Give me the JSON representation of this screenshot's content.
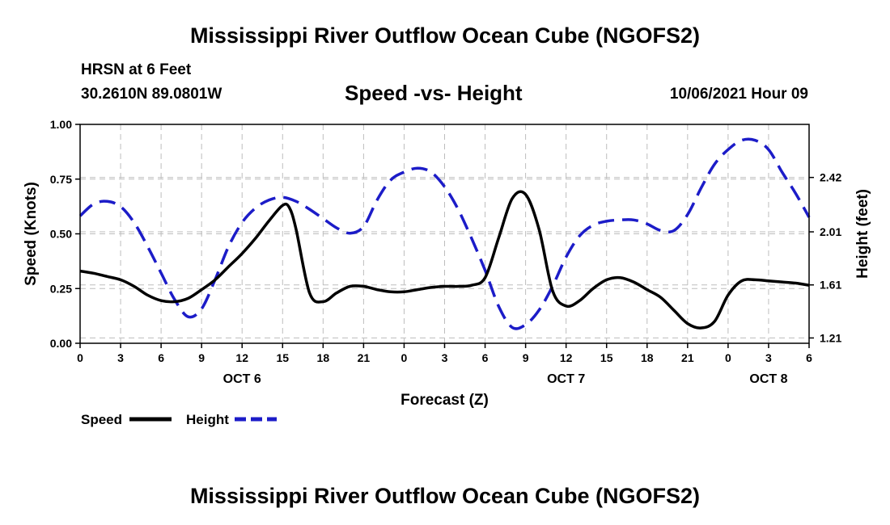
{
  "header": {
    "title_top": "Mississippi River Outflow Ocean Cube (NGOFS2)",
    "station": "HRSN at 6 Feet",
    "coords": "30.2610N  89.0801W",
    "datetime": "10/06/2021 Hour 09",
    "title_bottom": "Mississippi River Outflow Ocean Cube (NGOFS2)"
  },
  "chart_data": {
    "type": "line",
    "title": "Speed -vs- Height",
    "xlabel": "Forecast (Z)",
    "ylabel": "Speed (Knots)",
    "ylabel_right": "Height (feet)",
    "x_ticks": [
      "0",
      "3",
      "6",
      "9",
      "12",
      "15",
      "18",
      "21",
      "0",
      "3",
      "6",
      "9",
      "12",
      "15",
      "18",
      "21",
      "0",
      "3",
      "6"
    ],
    "x_range": [
      0,
      54
    ],
    "date_labels": [
      {
        "label": "OCT 6",
        "x": 12
      },
      {
        "label": "OCT 7",
        "x": 36
      },
      {
        "label": "OCT 8",
        "x": 51
      }
    ],
    "ylim": [
      0,
      1
    ],
    "y_ticks": [
      "0.00",
      "0.25",
      "0.50",
      "0.75",
      "1.00"
    ],
    "y_tick_values": [
      0,
      0.25,
      0.5,
      0.75,
      1.0
    ],
    "ylim_right": [
      1.17,
      2.82
    ],
    "y_ticks_right": [
      "1.21",
      "1.61",
      "2.01",
      "2.42"
    ],
    "y_tick_values_right": [
      1.21,
      1.61,
      2.01,
      2.42
    ],
    "grid": true,
    "series": [
      {
        "name": "Speed",
        "axis": "left",
        "color": "#000000",
        "dash": "solid",
        "x": [
          0,
          1,
          2,
          3,
          4,
          5,
          6,
          7,
          8,
          9,
          10,
          11,
          12,
          13,
          14,
          15,
          15.5,
          16,
          17,
          18,
          19,
          20,
          21,
          22,
          23,
          24,
          25,
          26,
          27,
          28,
          29,
          30,
          31,
          32,
          33,
          34,
          35,
          36,
          37,
          38,
          39,
          40,
          41,
          42,
          43,
          44,
          45,
          46,
          47,
          48,
          49,
          50,
          51,
          52,
          53,
          54
        ],
        "values": [
          0.33,
          0.32,
          0.305,
          0.29,
          0.26,
          0.22,
          0.195,
          0.19,
          0.205,
          0.245,
          0.29,
          0.35,
          0.41,
          0.48,
          0.56,
          0.63,
          0.62,
          0.52,
          0.23,
          0.19,
          0.23,
          0.26,
          0.26,
          0.245,
          0.235,
          0.235,
          0.245,
          0.255,
          0.26,
          0.26,
          0.265,
          0.3,
          0.48,
          0.66,
          0.68,
          0.52,
          0.24,
          0.17,
          0.195,
          0.25,
          0.29,
          0.3,
          0.28,
          0.245,
          0.21,
          0.15,
          0.09,
          0.07,
          0.1,
          0.22,
          0.285,
          0.29,
          0.285,
          0.28,
          0.275,
          0.265
        ]
      },
      {
        "name": "Height",
        "axis": "right",
        "color": "#1c1cc8",
        "dash": "dashed",
        "x": [
          0,
          1,
          2,
          3,
          4,
          5,
          6,
          7,
          8,
          9,
          10,
          11,
          12,
          13,
          14,
          15,
          16,
          17,
          18,
          19,
          20,
          21,
          22,
          23,
          24,
          25,
          26,
          27,
          28,
          29,
          30,
          31,
          32,
          33,
          34,
          35,
          36,
          37,
          38,
          39,
          40,
          41,
          42,
          43,
          44,
          45,
          46,
          47,
          48,
          49,
          50,
          51,
          52,
          53,
          54
        ],
        "values": [
          2.13,
          2.22,
          2.24,
          2.2,
          2.08,
          1.9,
          1.7,
          1.5,
          1.37,
          1.43,
          1.65,
          1.9,
          2.08,
          2.19,
          2.25,
          2.27,
          2.24,
          2.18,
          2.11,
          2.04,
          2.0,
          2.05,
          2.25,
          2.4,
          2.46,
          2.49,
          2.46,
          2.35,
          2.18,
          1.96,
          1.72,
          1.45,
          1.29,
          1.31,
          1.42,
          1.6,
          1.82,
          1.98,
          2.06,
          2.09,
          2.1,
          2.1,
          2.07,
          2.02,
          2.02,
          2.14,
          2.34,
          2.52,
          2.63,
          2.7,
          2.7,
          2.63,
          2.46,
          2.3,
          2.12
        ]
      }
    ],
    "legend": [
      {
        "label": "Speed",
        "color": "#000000",
        "dash": "solid"
      },
      {
        "label": "Height",
        "color": "#1c1cc8",
        "dash": "dashed"
      }
    ]
  }
}
